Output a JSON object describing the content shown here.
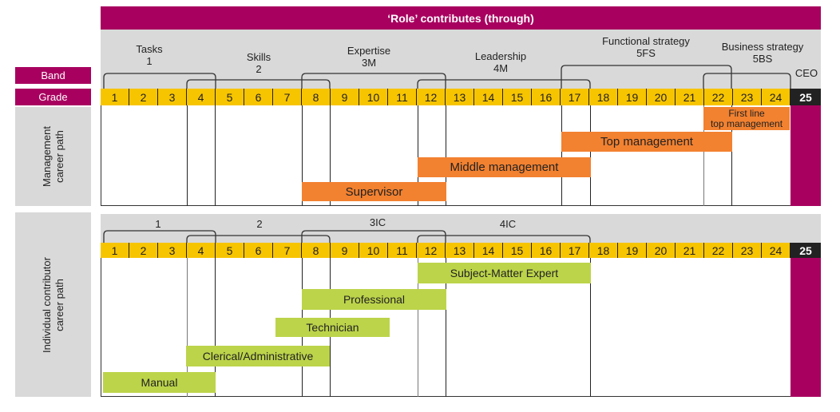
{
  "title": "‘Role’ contributes (through)",
  "labels": {
    "band": "Band",
    "grade": "Grade",
    "management_path": [
      "Management",
      "career path"
    ],
    "ic_path": [
      "Individual contributor",
      "career path"
    ]
  },
  "management_bands": [
    {
      "line1": "Tasks",
      "line2": "1"
    },
    {
      "line1": "Skills",
      "line2": "2"
    },
    {
      "line1": "Expertise",
      "line2": "3M"
    },
    {
      "line1": "Leadership",
      "line2": "4M"
    },
    {
      "line1": "Functional strategy",
      "line2": "5FS"
    },
    {
      "line1": "Business strategy",
      "line2": "5BS"
    },
    {
      "line1": "CEO",
      "line2": ""
    }
  ],
  "ic_bands": [
    {
      "line1": "1"
    },
    {
      "line1": "2"
    },
    {
      "line1": "3IC"
    },
    {
      "line1": "4IC"
    }
  ],
  "grades": [
    "1",
    "2",
    "3",
    "4",
    "5",
    "6",
    "7",
    "8",
    "9",
    "10",
    "11",
    "12",
    "13",
    "14",
    "15",
    "16",
    "17",
    "18",
    "19",
    "20",
    "21",
    "22",
    "23",
    "24"
  ],
  "ceo_grade": "25",
  "management_roles": [
    {
      "label": "Supervisor"
    },
    {
      "label": "Middle management"
    },
    {
      "label": "Top management"
    },
    {
      "label_line1": "First line",
      "label_line2": "top management"
    }
  ],
  "ic_roles": [
    {
      "label": "Subject-Matter Expert"
    },
    {
      "label": "Professional"
    },
    {
      "label": "Technician"
    },
    {
      "label": "Clerical/Administrative"
    },
    {
      "label": "Manual"
    }
  ],
  "colors": {
    "header": "#a8005f",
    "grade": "#f7c400",
    "management": "#f28130",
    "individual": "#bcd44a",
    "band_bg": "#d9d9d9",
    "ceo": "#222222"
  }
}
